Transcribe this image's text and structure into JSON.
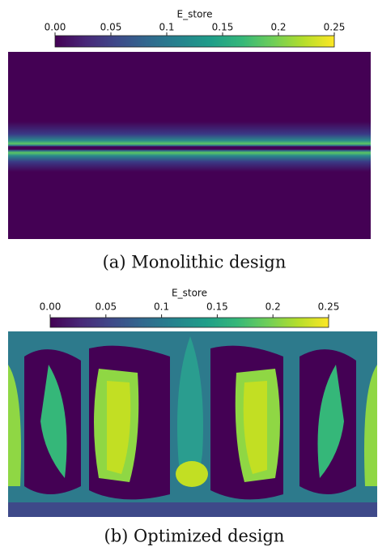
{
  "panels": [
    {
      "colorbar": {
        "title": "E_store",
        "range": [
          0,
          0.25
        ],
        "ticks": [
          {
            "value": 0,
            "label": "0.00"
          },
          0.05,
          0.1,
          0.15,
          0.2,
          0.25
        ]
      },
      "caption": "(a) Monolithic design"
    },
    {
      "colorbar": {
        "title": "E_store",
        "range": [
          0,
          0.25
        ],
        "ticks": [
          {
            "value": 0,
            "label": "0.00"
          },
          0.05,
          0.1,
          0.15,
          0.2,
          0.25
        ]
      },
      "caption": "(b) Optimized design"
    }
  ]
}
